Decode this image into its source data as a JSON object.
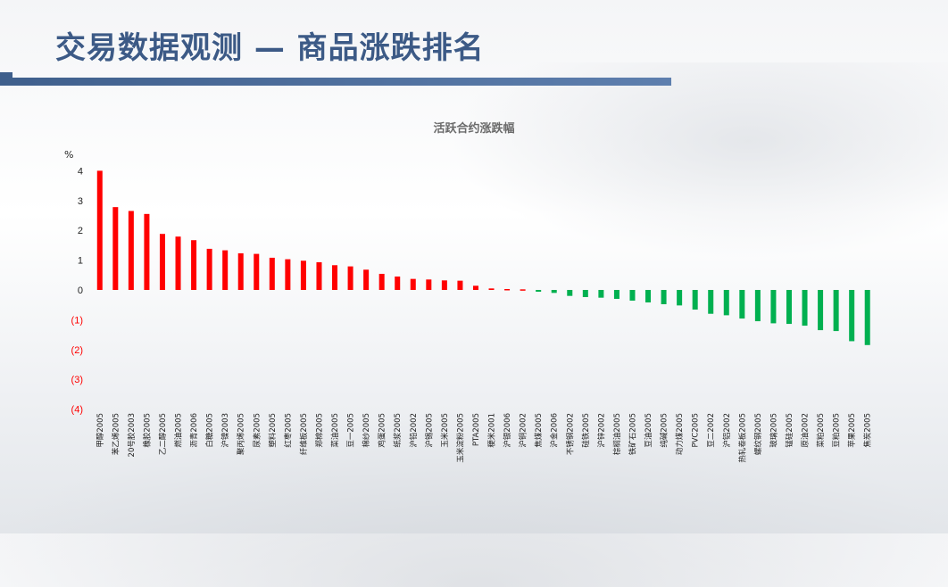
{
  "header": {
    "title": "交易数据观测 — 商品涨跌排名"
  },
  "colors": {
    "positive": "#ff0000",
    "negative": "#00b050",
    "title": "#3c5a86"
  },
  "chart_data": {
    "type": "bar",
    "title": "活跃合约涨跌幅",
    "ylabel": "%",
    "ylim": [
      -4,
      4
    ],
    "yticks": [
      4,
      3,
      2,
      1,
      0,
      -1,
      -2,
      -3,
      -4
    ],
    "ytick_labels": [
      "4",
      "3",
      "2",
      "1",
      "0",
      "(1)",
      "(2)",
      "(3)",
      "(4)"
    ],
    "grid": false,
    "categories": [
      "甲醇2005",
      "苯乙烯2005",
      "20号胶2003",
      "橡胶2005",
      "乙二醇2005",
      "燃油2005",
      "沥青2006",
      "白糖2005",
      "沪镍2003",
      "聚丙烯2005",
      "尿素2005",
      "塑料2005",
      "红枣2005",
      "纤维板2005",
      "郑棉2005",
      "菜油2005",
      "豆一2005",
      "棉纱2005",
      "鸡蛋2005",
      "纸浆2005",
      "沪铅2002",
      "沪锡2005",
      "玉米2005",
      "玉米淀粉2005",
      "PTA2005",
      "粳米2001",
      "沪银2006",
      "沪铜2002",
      "焦煤2005",
      "沪金2006",
      "不锈钢2002",
      "硅铁2005",
      "沪锌2002",
      "棕榈油2005",
      "铁矿石2005",
      "豆油2005",
      "纯碱2005",
      "动力煤2005",
      "PVC2005",
      "豆二2002",
      "沪铝2002",
      "热轧卷板2005",
      "螺纹钢2005",
      "玻璃2005",
      "锰硅2005",
      "原油2002",
      "菜粕2005",
      "豆粕2005",
      "苹果2005",
      "焦炭2005"
    ],
    "values": [
      4.0,
      2.78,
      2.65,
      2.55,
      1.88,
      1.79,
      1.67,
      1.38,
      1.33,
      1.23,
      1.21,
      1.08,
      1.03,
      0.98,
      0.93,
      0.83,
      0.79,
      0.68,
      0.54,
      0.45,
      0.37,
      0.35,
      0.32,
      0.31,
      0.14,
      0.05,
      0.03,
      0.02,
      -0.06,
      -0.1,
      -0.2,
      -0.24,
      -0.26,
      -0.3,
      -0.36,
      -0.42,
      -0.48,
      -0.52,
      -0.66,
      -0.8,
      -0.85,
      -0.96,
      -1.05,
      -1.12,
      -1.14,
      -1.2,
      -1.35,
      -1.38,
      -1.72,
      -1.85
    ]
  }
}
